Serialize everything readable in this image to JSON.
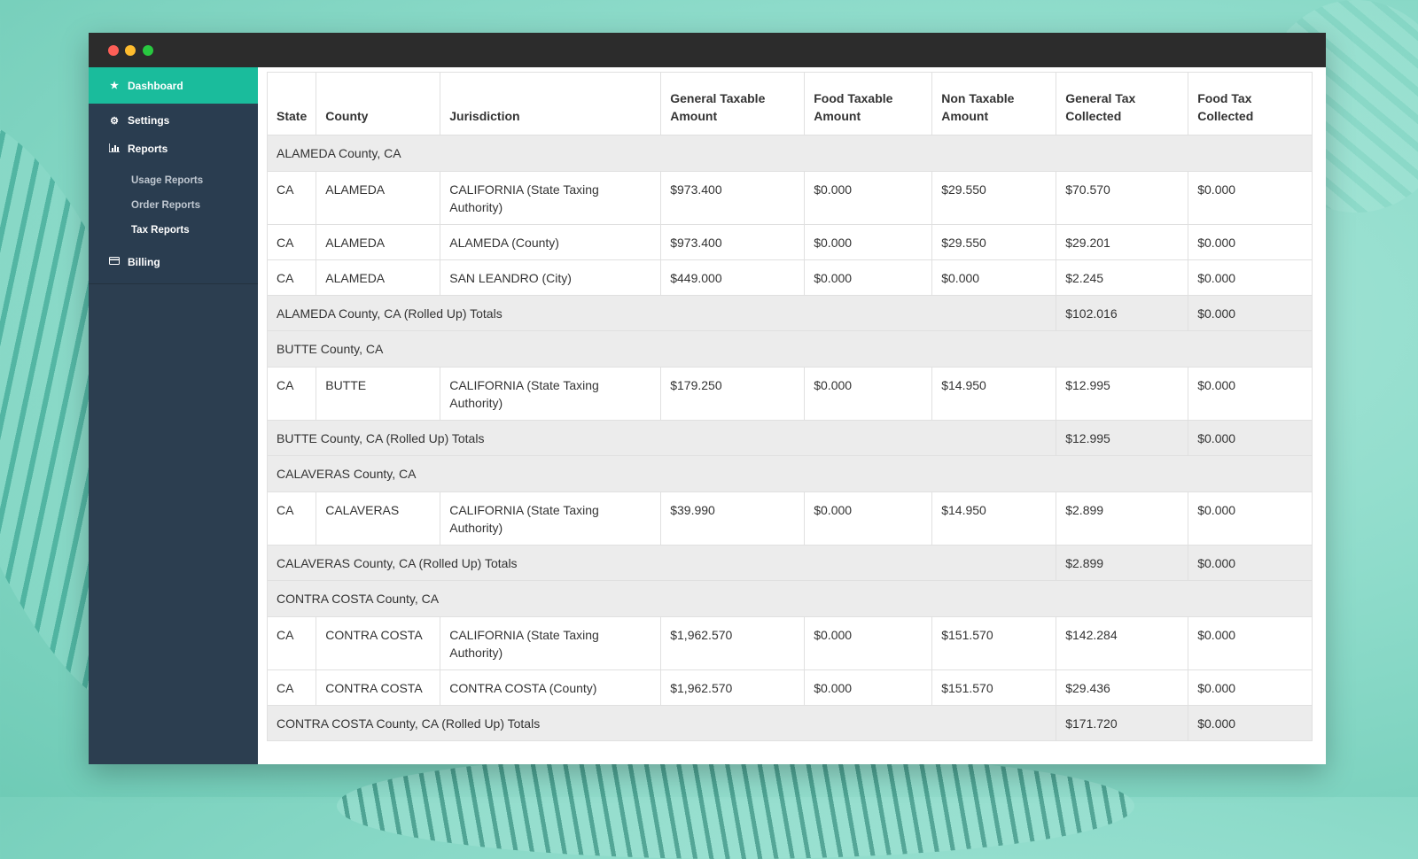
{
  "sidebar": {
    "dashboard": "Dashboard",
    "settings": "Settings",
    "reports": "Reports",
    "sub": [
      "Usage Reports",
      "Order Reports",
      "Tax Reports"
    ],
    "billing": "Billing"
  },
  "table": {
    "headers": [
      "State",
      "County",
      "Jurisdiction",
      "General Taxable Amount",
      "Food Taxable Amount",
      "Non Taxable Amount",
      "General Tax Collected",
      "Food Tax Collected"
    ],
    "groups": [
      {
        "title": "ALAMEDA County, CA",
        "rows": [
          [
            "CA",
            "ALAMEDA",
            "CALIFORNIA (State Taxing Authority)",
            "$973.400",
            "$0.000",
            "$29.550",
            "$70.570",
            "$0.000"
          ],
          [
            "CA",
            "ALAMEDA",
            "ALAMEDA (County)",
            "$973.400",
            "$0.000",
            "$29.550",
            "$29.201",
            "$0.000"
          ],
          [
            "CA",
            "ALAMEDA",
            "SAN LEANDRO (City)",
            "$449.000",
            "$0.000",
            "$0.000",
            "$2.245",
            "$0.000"
          ]
        ],
        "total_label": "ALAMEDA County, CA (Rolled Up) Totals",
        "total_general": "$102.016",
        "total_food": "$0.000"
      },
      {
        "title": "BUTTE County, CA",
        "rows": [
          [
            "CA",
            "BUTTE",
            "CALIFORNIA (State Taxing Authority)",
            "$179.250",
            "$0.000",
            "$14.950",
            "$12.995",
            "$0.000"
          ]
        ],
        "total_label": "BUTTE County, CA (Rolled Up) Totals",
        "total_general": "$12.995",
        "total_food": "$0.000"
      },
      {
        "title": "CALAVERAS County, CA",
        "rows": [
          [
            "CA",
            "CALAVERAS",
            "CALIFORNIA (State Taxing Authority)",
            "$39.990",
            "$0.000",
            "$14.950",
            "$2.899",
            "$0.000"
          ]
        ],
        "total_label": "CALAVERAS County, CA (Rolled Up) Totals",
        "total_general": "$2.899",
        "total_food": "$0.000"
      },
      {
        "title": "CONTRA COSTA County, CA",
        "rows": [
          [
            "CA",
            "CONTRA COSTA",
            "CALIFORNIA (State Taxing Authority)",
            "$1,962.570",
            "$0.000",
            "$151.570",
            "$142.284",
            "$0.000"
          ],
          [
            "CA",
            "CONTRA COSTA",
            "CONTRA COSTA (County)",
            "$1,962.570",
            "$0.000",
            "$151.570",
            "$29.436",
            "$0.000"
          ]
        ],
        "total_label": "CONTRA COSTA County, CA (Rolled Up) Totals",
        "total_general": "$171.720",
        "total_food": "$0.000"
      }
    ]
  },
  "colors": {
    "accent": "#1abc9c",
    "sidebar": "#2c3e50",
    "titlebar": "#2c2c2c",
    "row_shade": "#ececec"
  },
  "icons": {
    "dashboard": "star-icon",
    "settings": "gear-icon",
    "reports": "bar-chart-icon",
    "billing": "credit-card-icon"
  }
}
